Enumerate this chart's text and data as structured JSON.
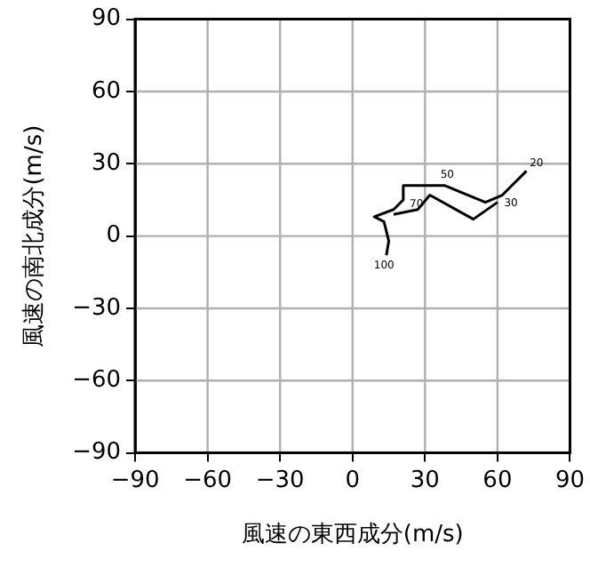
{
  "chart_data": {
    "type": "line",
    "xlabel": "風速の東西成分(m/s)",
    "ylabel": "風速の南北成分(m/s)",
    "xlim": [
      -90,
      90
    ],
    "ylim": [
      -90,
      90
    ],
    "xticks": [
      {
        "value": -90,
        "label": "−90"
      },
      {
        "value": -60,
        "label": "−60"
      },
      {
        "value": -30,
        "label": "−30"
      },
      0,
      30,
      60,
      90
    ],
    "yticks": [
      {
        "value": -90,
        "label": "−90"
      },
      {
        "value": -60,
        "label": "−60"
      },
      {
        "value": -30,
        "label": "−30"
      },
      0,
      30,
      60,
      90
    ],
    "grid": true,
    "marker": "none",
    "line_style": "solid",
    "series": [
      {
        "color": "#000000",
        "x": [
          14,
          15,
          13,
          9,
          17,
          21,
          21,
          38,
          55,
          62,
          72
        ],
        "values": [
          -8,
          -2,
          6,
          8,
          11,
          15,
          21,
          21,
          14,
          17,
          27
        ]
      },
      {
        "color": "#000000",
        "x": [
          17,
          27,
          32,
          50,
          60
        ],
        "values": [
          9,
          11,
          17,
          7,
          14
        ]
      }
    ],
    "annotations": [
      {
        "text": "100",
        "x": 14,
        "y": -8
      },
      {
        "text": "70",
        "x": 21,
        "y": 15
      },
      {
        "text": "50",
        "x": 38,
        "y": 21
      },
      {
        "text": "30",
        "x": 62,
        "y": 17
      },
      {
        "text": "20",
        "x": 72,
        "y": 27
      }
    ]
  }
}
